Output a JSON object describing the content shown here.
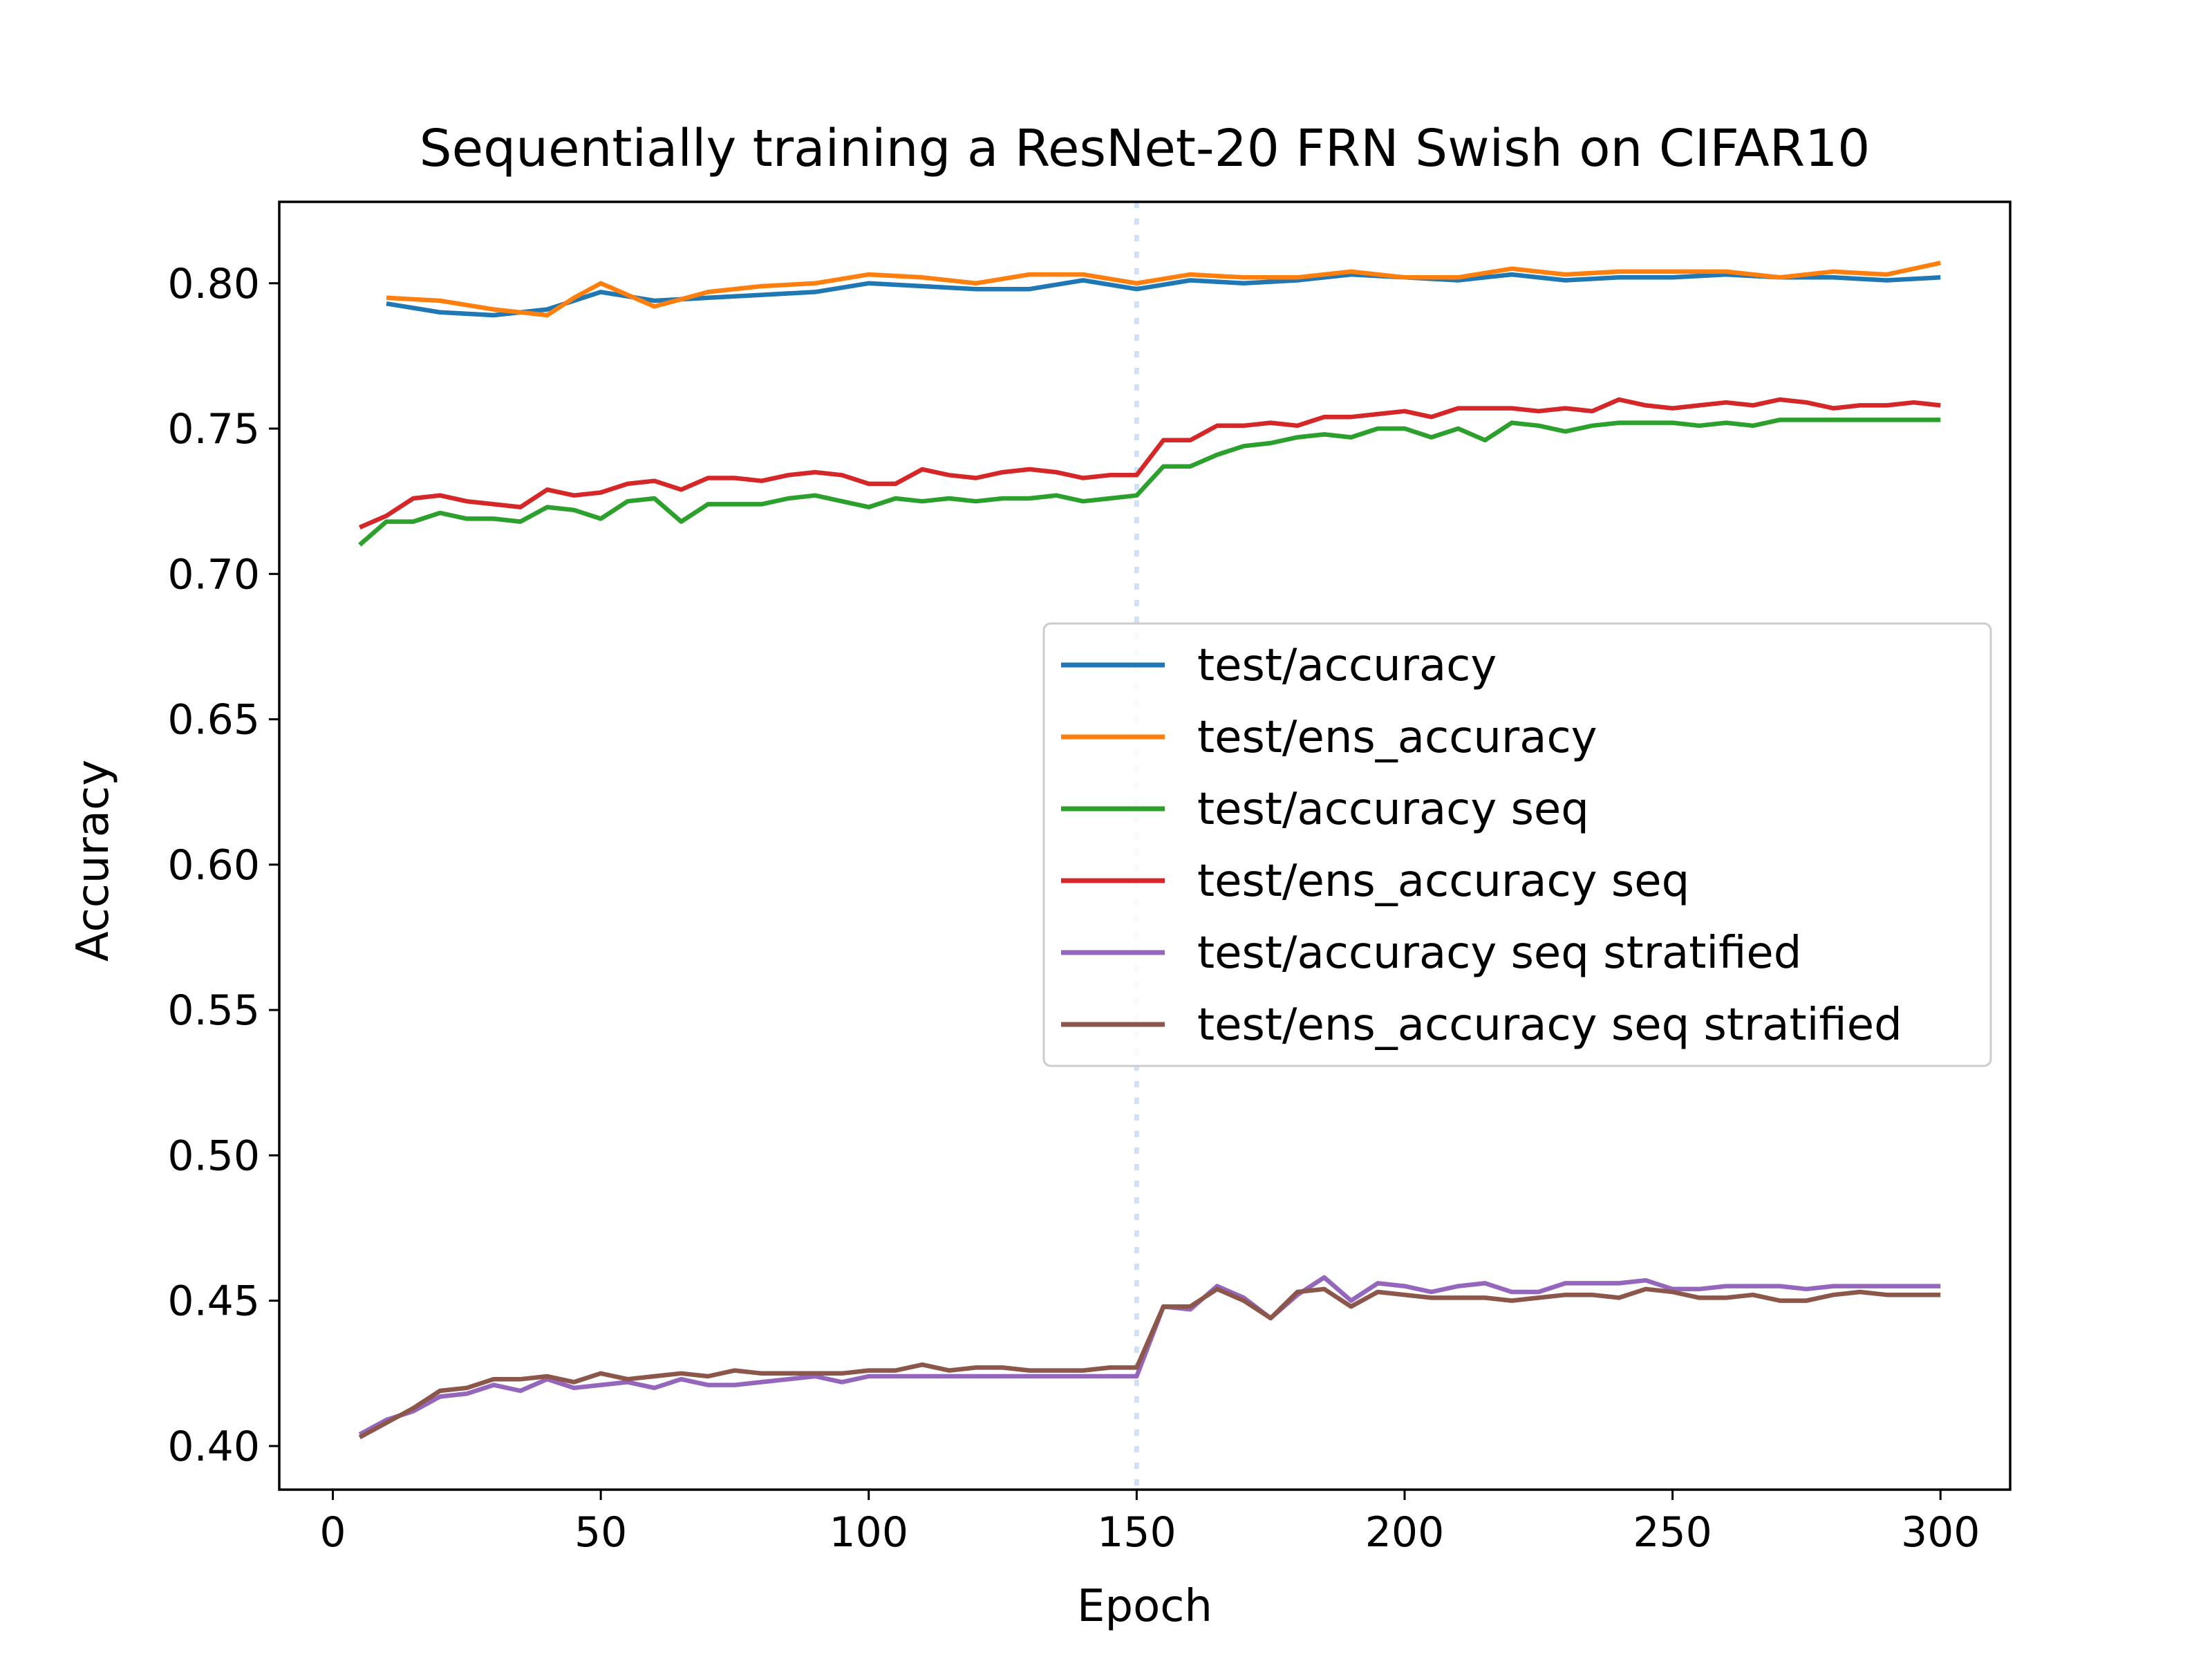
{
  "chart_data": {
    "type": "line",
    "title": "Sequentially training a ResNet-20 FRN Swish on CIFAR10",
    "xlabel": "Epoch",
    "ylabel": "Accuracy",
    "xlim": [
      -10,
      313
    ],
    "ylim": [
      0.385,
      0.828
    ],
    "xticks": [
      0,
      50,
      100,
      150,
      200,
      250,
      300
    ],
    "xtick_labels": [
      "0",
      "50",
      "100",
      "150",
      "200",
      "250",
      "300"
    ],
    "yticks": [
      0.4,
      0.45,
      0.5,
      0.55,
      0.6,
      0.65,
      0.7,
      0.75,
      0.8
    ],
    "ytick_labels": [
      "0.40",
      "0.45",
      "0.50",
      "0.55",
      "0.60",
      "0.65",
      "0.70",
      "0.75",
      "0.80"
    ],
    "grid": false,
    "legend_position": "center-right",
    "vline": {
      "x": 150,
      "style": "dotted",
      "color": "#cfe2f3"
    },
    "series": [
      {
        "name": "test/accuracy",
        "color": "#1f77b4",
        "x": [
          10,
          20,
          30,
          40,
          50,
          60,
          70,
          80,
          90,
          100,
          110,
          120,
          130,
          140,
          150,
          160,
          170,
          180,
          190,
          200,
          210,
          220,
          230,
          240,
          250,
          260,
          270,
          280,
          290,
          300
        ],
        "y": [
          0.793,
          0.79,
          0.789,
          0.791,
          0.797,
          0.794,
          0.795,
          0.796,
          0.797,
          0.8,
          0.799,
          0.798,
          0.798,
          0.801,
          0.798,
          0.801,
          0.8,
          0.801,
          0.803,
          0.802,
          0.801,
          0.803,
          0.801,
          0.802,
          0.802,
          0.803,
          0.802,
          0.802,
          0.801,
          0.802
        ]
      },
      {
        "name": "test/ens_accuracy",
        "color": "#ff7f0e",
        "x": [
          10,
          20,
          30,
          40,
          45,
          50,
          55,
          60,
          70,
          80,
          90,
          100,
          110,
          120,
          130,
          140,
          150,
          160,
          170,
          180,
          190,
          200,
          210,
          220,
          230,
          240,
          250,
          260,
          270,
          280,
          290,
          300
        ],
        "y": [
          0.795,
          0.794,
          0.791,
          0.789,
          0.795,
          0.8,
          0.796,
          0.792,
          0.797,
          0.799,
          0.8,
          0.803,
          0.802,
          0.8,
          0.803,
          0.803,
          0.8,
          0.803,
          0.802,
          0.802,
          0.804,
          0.802,
          0.802,
          0.805,
          0.803,
          0.804,
          0.804,
          0.804,
          0.802,
          0.804,
          0.803,
          0.807
        ]
      },
      {
        "name": "test/accuracy seq",
        "color": "#2ca02c",
        "x": [
          5,
          10,
          15,
          20,
          25,
          30,
          35,
          40,
          45,
          50,
          55,
          60,
          65,
          70,
          75,
          80,
          85,
          90,
          95,
          100,
          105,
          110,
          115,
          120,
          125,
          130,
          135,
          140,
          145,
          150,
          155,
          160,
          165,
          170,
          175,
          180,
          185,
          190,
          195,
          200,
          205,
          210,
          215,
          220,
          225,
          230,
          235,
          240,
          245,
          250,
          255,
          260,
          265,
          270,
          275,
          280,
          285,
          290,
          295,
          300
        ],
        "y": [
          0.71,
          0.718,
          0.718,
          0.721,
          0.719,
          0.719,
          0.718,
          0.723,
          0.722,
          0.719,
          0.725,
          0.726,
          0.718,
          0.724,
          0.724,
          0.724,
          0.726,
          0.727,
          0.725,
          0.723,
          0.726,
          0.725,
          0.726,
          0.725,
          0.726,
          0.726,
          0.727,
          0.725,
          0.726,
          0.727,
          0.737,
          0.737,
          0.741,
          0.744,
          0.745,
          0.747,
          0.748,
          0.747,
          0.75,
          0.75,
          0.747,
          0.75,
          0.746,
          0.752,
          0.751,
          0.749,
          0.751,
          0.752,
          0.752,
          0.752,
          0.751,
          0.752,
          0.751,
          0.753,
          0.753,
          0.753,
          0.753,
          0.753,
          0.753,
          0.753
        ]
      },
      {
        "name": "test/ens_accuracy seq",
        "color": "#d62728",
        "x": [
          5,
          10,
          15,
          20,
          25,
          30,
          35,
          40,
          45,
          50,
          55,
          60,
          65,
          70,
          75,
          80,
          85,
          90,
          95,
          100,
          105,
          110,
          115,
          120,
          125,
          130,
          135,
          140,
          145,
          150,
          155,
          160,
          165,
          170,
          175,
          180,
          185,
          190,
          195,
          200,
          205,
          210,
          215,
          220,
          225,
          230,
          235,
          240,
          245,
          250,
          255,
          260,
          265,
          270,
          275,
          280,
          285,
          290,
          295,
          300
        ],
        "y": [
          0.716,
          0.72,
          0.726,
          0.727,
          0.725,
          0.724,
          0.723,
          0.729,
          0.727,
          0.728,
          0.731,
          0.732,
          0.729,
          0.733,
          0.733,
          0.732,
          0.734,
          0.735,
          0.734,
          0.731,
          0.731,
          0.736,
          0.734,
          0.733,
          0.735,
          0.736,
          0.735,
          0.733,
          0.734,
          0.734,
          0.746,
          0.746,
          0.751,
          0.751,
          0.752,
          0.751,
          0.754,
          0.754,
          0.755,
          0.756,
          0.754,
          0.757,
          0.757,
          0.757,
          0.756,
          0.757,
          0.756,
          0.76,
          0.758,
          0.757,
          0.758,
          0.759,
          0.758,
          0.76,
          0.759,
          0.757,
          0.758,
          0.758,
          0.759,
          0.758
        ]
      },
      {
        "name": "test/accuracy seq stratified",
        "color": "#9467bd",
        "x": [
          5,
          10,
          15,
          20,
          25,
          30,
          35,
          40,
          45,
          50,
          55,
          60,
          65,
          70,
          75,
          80,
          85,
          90,
          95,
          100,
          105,
          110,
          115,
          120,
          125,
          130,
          135,
          140,
          145,
          150,
          155,
          160,
          165,
          170,
          175,
          180,
          185,
          190,
          195,
          200,
          205,
          210,
          215,
          220,
          225,
          230,
          235,
          240,
          245,
          250,
          255,
          260,
          265,
          270,
          275,
          280,
          285,
          290,
          295,
          300
        ],
        "y": [
          0.404,
          0.409,
          0.412,
          0.417,
          0.418,
          0.421,
          0.419,
          0.423,
          0.42,
          0.421,
          0.422,
          0.42,
          0.423,
          0.421,
          0.421,
          0.422,
          0.423,
          0.424,
          0.422,
          0.424,
          0.424,
          0.424,
          0.424,
          0.424,
          0.424,
          0.424,
          0.424,
          0.424,
          0.424,
          0.424,
          0.448,
          0.447,
          0.455,
          0.451,
          0.444,
          0.452,
          0.458,
          0.45,
          0.456,
          0.455,
          0.453,
          0.455,
          0.456,
          0.453,
          0.453,
          0.456,
          0.456,
          0.456,
          0.457,
          0.454,
          0.454,
          0.455,
          0.455,
          0.455,
          0.454,
          0.455,
          0.455,
          0.455,
          0.455,
          0.455
        ]
      },
      {
        "name": "test/ens_accuracy seq stratified",
        "color": "#8c564b",
        "x": [
          5,
          10,
          15,
          20,
          25,
          30,
          35,
          40,
          45,
          50,
          55,
          60,
          65,
          70,
          75,
          80,
          85,
          90,
          95,
          100,
          105,
          110,
          115,
          120,
          125,
          130,
          135,
          140,
          145,
          150,
          155,
          160,
          165,
          170,
          175,
          180,
          185,
          190,
          195,
          200,
          205,
          210,
          215,
          220,
          225,
          230,
          235,
          240,
          245,
          250,
          255,
          260,
          265,
          270,
          275,
          280,
          285,
          290,
          295,
          300
        ],
        "y": [
          0.403,
          0.408,
          0.413,
          0.419,
          0.42,
          0.423,
          0.423,
          0.424,
          0.422,
          0.425,
          0.423,
          0.424,
          0.425,
          0.424,
          0.426,
          0.425,
          0.425,
          0.425,
          0.425,
          0.426,
          0.426,
          0.428,
          0.426,
          0.427,
          0.427,
          0.426,
          0.426,
          0.426,
          0.427,
          0.427,
          0.448,
          0.448,
          0.454,
          0.45,
          0.444,
          0.453,
          0.454,
          0.448,
          0.453,
          0.452,
          0.451,
          0.451,
          0.451,
          0.45,
          0.451,
          0.452,
          0.452,
          0.451,
          0.454,
          0.453,
          0.451,
          0.451,
          0.452,
          0.45,
          0.45,
          0.452,
          0.453,
          0.452,
          0.452,
          0.452
        ]
      }
    ]
  }
}
